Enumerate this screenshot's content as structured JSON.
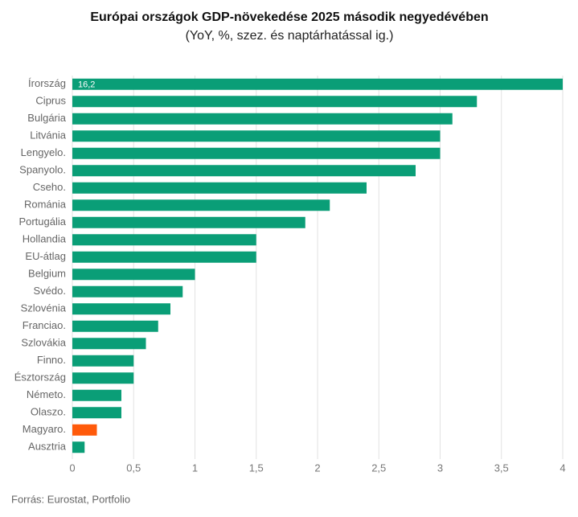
{
  "chart_data": {
    "type": "bar",
    "orientation": "horizontal",
    "title": "Európai országok GDP-növekedése 2025 második negyedévében",
    "subtitle": "(YoY, %, szez. és naptárhatással ig.)",
    "source": "Forrás: Eurostat, Portfolio",
    "categories": [
      "Írország",
      "Ciprus",
      "Bulgária",
      "Litvánia",
      "Lengyelo.",
      "Spanyolo.",
      "Cseho.",
      "Románia",
      "Portugália",
      "Hollandia",
      "EU-átlag",
      "Belgium",
      "Svédo.",
      "Szlovénia",
      "Franciao.",
      "Szlovákia",
      "Finno.",
      "Észtország",
      "Németo.",
      "Olaszo.",
      "Magyaro.",
      "Ausztria"
    ],
    "values": [
      16.2,
      3.3,
      3.1,
      3.0,
      3.0,
      2.8,
      2.4,
      2.1,
      1.9,
      1.5,
      1.5,
      1.0,
      0.9,
      0.8,
      0.7,
      0.6,
      0.5,
      0.5,
      0.4,
      0.4,
      0.2,
      0.1
    ],
    "value_labels": [
      "16,2",
      null,
      null,
      null,
      null,
      null,
      null,
      null,
      null,
      null,
      null,
      null,
      null,
      null,
      null,
      null,
      null,
      null,
      null,
      null,
      null,
      null
    ],
    "colors": [
      "#0a9e77",
      "#0a9e77",
      "#0a9e77",
      "#0a9e77",
      "#0a9e77",
      "#0a9e77",
      "#0a9e77",
      "#0a9e77",
      "#0a9e77",
      "#0a9e77",
      "#0a9e77",
      "#0a9e77",
      "#0a9e77",
      "#0a9e77",
      "#0a9e77",
      "#0a9e77",
      "#0a9e77",
      "#0a9e77",
      "#0a9e77",
      "#0a9e77",
      "#ff5a0a",
      "#0a9e77"
    ],
    "xlim": [
      0,
      4
    ],
    "xticks": [
      0,
      {
        "value": 0.5,
        "label": "0,5"
      },
      1,
      {
        "value": 1.5,
        "label": "1,5"
      },
      2,
      {
        "value": 2.5,
        "label": "2,5"
      },
      3,
      {
        "value": 3.5,
        "label": "3,5"
      },
      4
    ],
    "grid": true
  }
}
